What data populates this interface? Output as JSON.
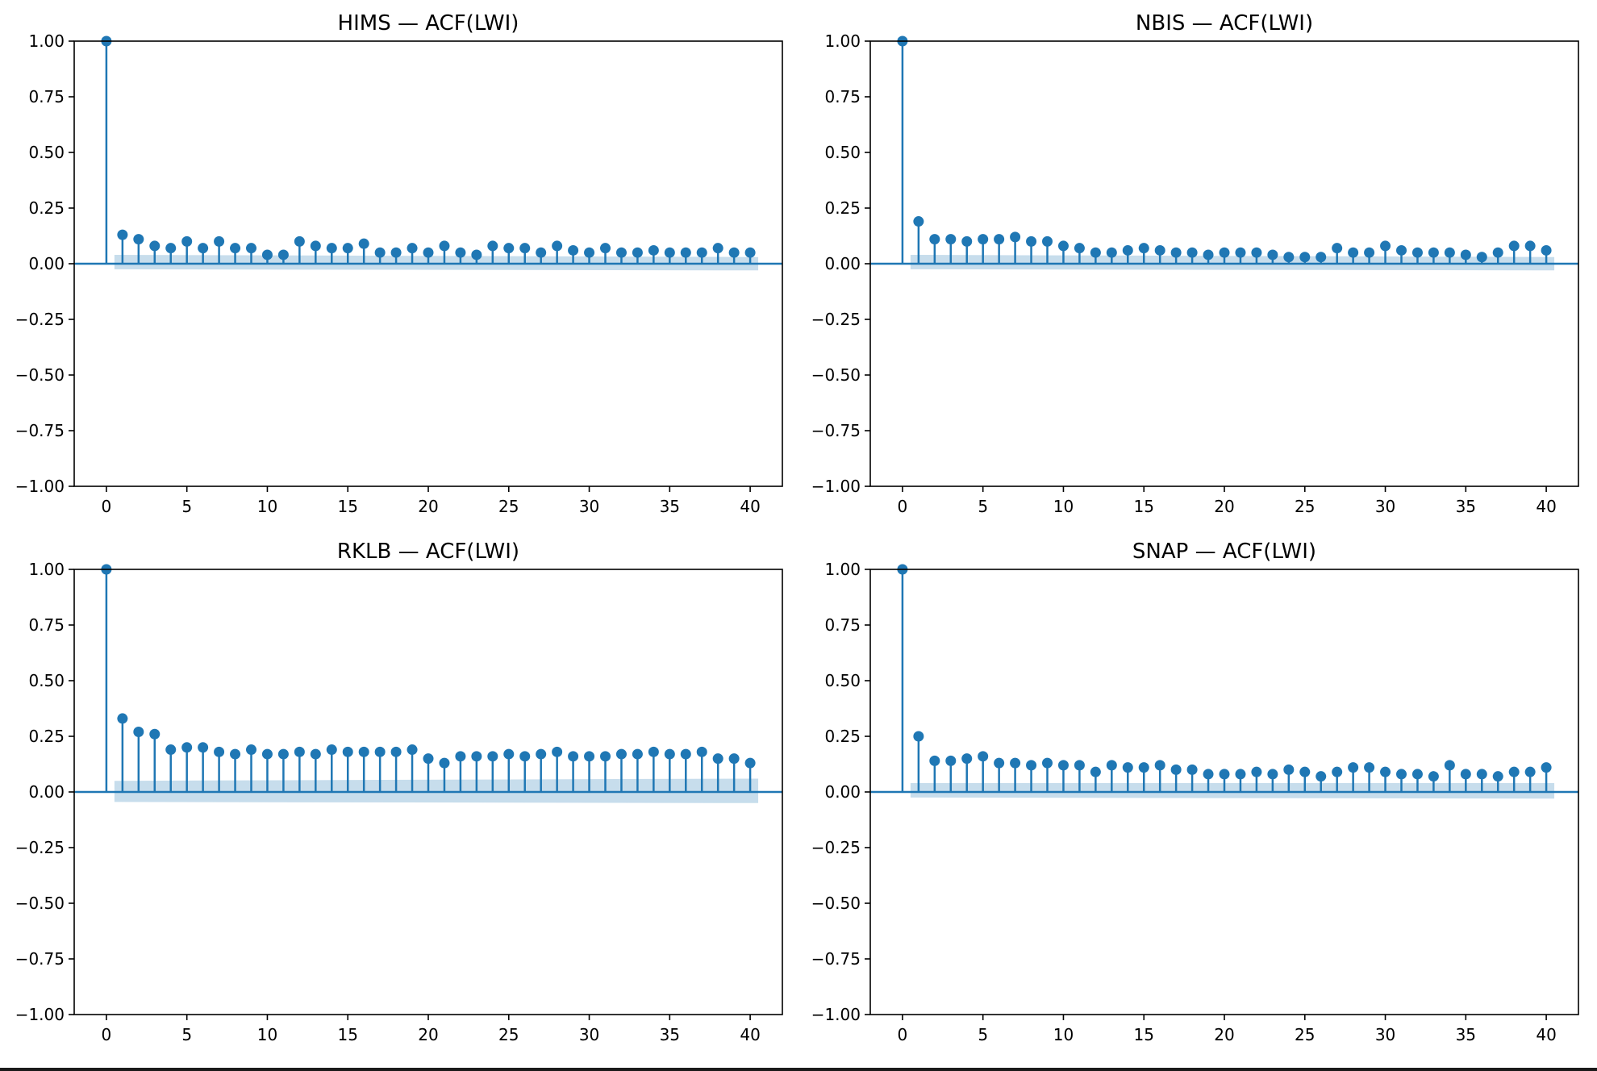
{
  "colors": {
    "series": "#1f77b4",
    "confidence_band": "#1f77b4",
    "axes": "#000000",
    "background": "#ffffff"
  },
  "chart_data": [
    {
      "type": "stem",
      "title": "HIMS — ACF(LWI)",
      "xlabel": "",
      "ylabel": "",
      "xlim": [
        -2,
        42
      ],
      "ylim": [
        -1.0,
        1.0
      ],
      "xticks": [
        "0",
        "5",
        "10",
        "15",
        "20",
        "25",
        "30",
        "35",
        "40"
      ],
      "yticks": [
        "1.00",
        "0.75",
        "0.50",
        "0.25",
        "0.00",
        "−0.25",
        "−0.50",
        "−0.75",
        "−1.00"
      ],
      "grid": false,
      "lags": [
        0,
        1,
        2,
        3,
        4,
        5,
        6,
        7,
        8,
        9,
        10,
        11,
        12,
        13,
        14,
        15,
        16,
        17,
        18,
        19,
        20,
        21,
        22,
        23,
        24,
        25,
        26,
        27,
        28,
        29,
        30,
        31,
        32,
        33,
        34,
        35,
        36,
        37,
        38,
        39,
        40
      ],
      "values": [
        1.0,
        0.13,
        0.11,
        0.08,
        0.07,
        0.1,
        0.07,
        0.1,
        0.07,
        0.07,
        0.04,
        0.04,
        0.1,
        0.08,
        0.07,
        0.07,
        0.09,
        0.05,
        0.05,
        0.07,
        0.05,
        0.08,
        0.05,
        0.04,
        0.08,
        0.07,
        0.07,
        0.05,
        0.08,
        0.06,
        0.05,
        0.07,
        0.05,
        0.05,
        0.06,
        0.05,
        0.05,
        0.05,
        0.07,
        0.05,
        0.05
      ],
      "confidence_band": {
        "lower": -0.03,
        "upper_start": 0.04,
        "upper_end": 0.03
      }
    },
    {
      "type": "stem",
      "title": "NBIS — ACF(LWI)",
      "xlabel": "",
      "ylabel": "",
      "xlim": [
        -2,
        42
      ],
      "ylim": [
        -1.0,
        1.0
      ],
      "xticks": [
        "0",
        "5",
        "10",
        "15",
        "20",
        "25",
        "30",
        "35",
        "40"
      ],
      "yticks": [
        "1.00",
        "0.75",
        "0.50",
        "0.25",
        "0.00",
        "−0.25",
        "−0.50",
        "−0.75",
        "−1.00"
      ],
      "grid": false,
      "lags": [
        0,
        1,
        2,
        3,
        4,
        5,
        6,
        7,
        8,
        9,
        10,
        11,
        12,
        13,
        14,
        15,
        16,
        17,
        18,
        19,
        20,
        21,
        22,
        23,
        24,
        25,
        26,
        27,
        28,
        29,
        30,
        31,
        32,
        33,
        34,
        35,
        36,
        37,
        38,
        39,
        40
      ],
      "values": [
        1.0,
        0.19,
        0.11,
        0.11,
        0.1,
        0.11,
        0.11,
        0.12,
        0.1,
        0.1,
        0.08,
        0.07,
        0.05,
        0.05,
        0.06,
        0.07,
        0.06,
        0.05,
        0.05,
        0.04,
        0.05,
        0.05,
        0.05,
        0.04,
        0.03,
        0.03,
        0.03,
        0.07,
        0.05,
        0.05,
        0.08,
        0.06,
        0.05,
        0.05,
        0.05,
        0.04,
        0.03,
        0.05,
        0.08,
        0.08,
        0.06
      ],
      "confidence_band": {
        "lower": -0.03,
        "upper_start": 0.04,
        "upper_end": 0.03
      }
    },
    {
      "type": "stem",
      "title": "RKLB — ACF(LWI)",
      "xlabel": "",
      "ylabel": "",
      "xlim": [
        -2,
        42
      ],
      "ylim": [
        -1.0,
        1.0
      ],
      "xticks": [
        "0",
        "5",
        "10",
        "15",
        "20",
        "25",
        "30",
        "35",
        "40"
      ],
      "yticks": [
        "1.00",
        "0.75",
        "0.50",
        "0.25",
        "0.00",
        "−0.25",
        "−0.50",
        "−0.75",
        "−1.00"
      ],
      "grid": false,
      "lags": [
        0,
        1,
        2,
        3,
        4,
        5,
        6,
        7,
        8,
        9,
        10,
        11,
        12,
        13,
        14,
        15,
        16,
        17,
        18,
        19,
        20,
        21,
        22,
        23,
        24,
        25,
        26,
        27,
        28,
        29,
        30,
        31,
        32,
        33,
        34,
        35,
        36,
        37,
        38,
        39,
        40
      ],
      "values": [
        1.0,
        0.33,
        0.27,
        0.26,
        0.19,
        0.2,
        0.2,
        0.18,
        0.17,
        0.19,
        0.17,
        0.17,
        0.18,
        0.17,
        0.19,
        0.18,
        0.18,
        0.18,
        0.18,
        0.19,
        0.15,
        0.13,
        0.16,
        0.16,
        0.16,
        0.17,
        0.16,
        0.17,
        0.18,
        0.16,
        0.16,
        0.16,
        0.17,
        0.17,
        0.18,
        0.17,
        0.17,
        0.18,
        0.15,
        0.15,
        0.13
      ],
      "confidence_band": {
        "lower": -0.05,
        "upper_start": 0.05,
        "upper_end": 0.06
      }
    },
    {
      "type": "stem",
      "title": "SNAP — ACF(LWI)",
      "xlabel": "",
      "ylabel": "",
      "xlim": [
        -2,
        42
      ],
      "ylim": [
        -1.0,
        1.0
      ],
      "xticks": [
        "0",
        "5",
        "10",
        "15",
        "20",
        "25",
        "30",
        "35",
        "40"
      ],
      "yticks": [
        "1.00",
        "0.75",
        "0.50",
        "0.25",
        "0.00",
        "−0.25",
        "−0.50",
        "−0.75",
        "−1.00"
      ],
      "grid": false,
      "lags": [
        0,
        1,
        2,
        3,
        4,
        5,
        6,
        7,
        8,
        9,
        10,
        11,
        12,
        13,
        14,
        15,
        16,
        17,
        18,
        19,
        20,
        21,
        22,
        23,
        24,
        25,
        26,
        27,
        28,
        29,
        30,
        31,
        32,
        33,
        34,
        35,
        36,
        37,
        38,
        39,
        40
      ],
      "values": [
        1.0,
        0.25,
        0.14,
        0.14,
        0.15,
        0.16,
        0.13,
        0.13,
        0.12,
        0.13,
        0.12,
        0.12,
        0.09,
        0.12,
        0.11,
        0.11,
        0.12,
        0.1,
        0.1,
        0.08,
        0.08,
        0.08,
        0.09,
        0.08,
        0.1,
        0.09,
        0.07,
        0.09,
        0.11,
        0.11,
        0.09,
        0.08,
        0.08,
        0.07,
        0.12,
        0.08,
        0.08,
        0.07,
        0.09,
        0.09,
        0.11
      ],
      "confidence_band": {
        "lower": -0.03,
        "upper_start": 0.04,
        "upper_end": 0.04
      }
    }
  ]
}
